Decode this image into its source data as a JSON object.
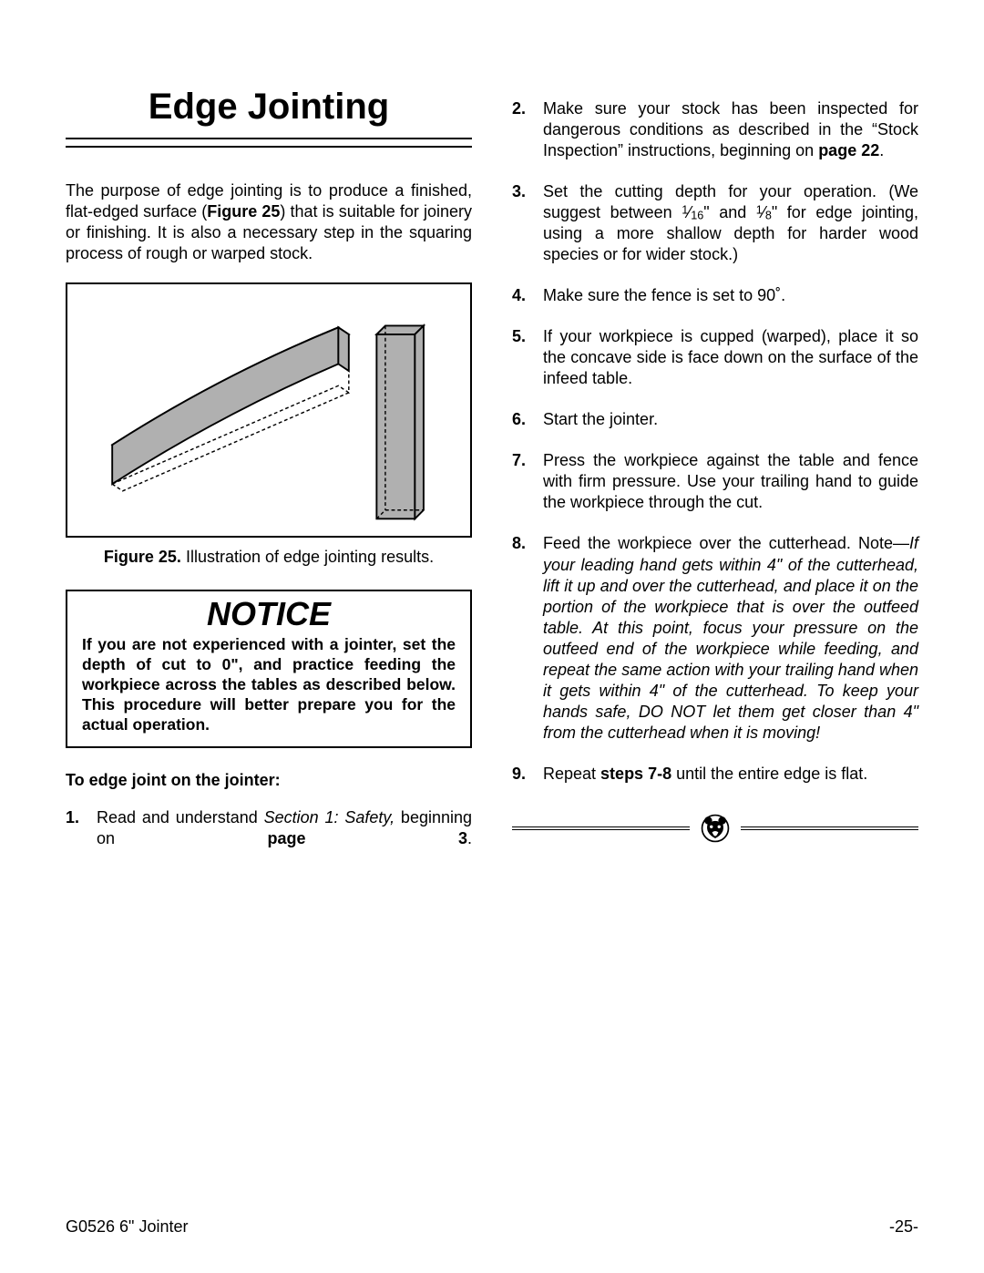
{
  "title": "Edge Jointing",
  "intro_parts": {
    "pre": "The purpose of edge jointing is to produce a finished, flat-edged surface (",
    "ref": "Figure 25",
    "post": ") that is suitable for joinery or finishing. It is also a necessary step in the squaring process of rough or warped stock."
  },
  "figure": {
    "caption_label": "Figure 25.",
    "caption_text": " Illustration of edge jointing results.",
    "colors": {
      "board_fill": "#b0b0b0",
      "stroke": "#000000",
      "background": "#ffffff"
    }
  },
  "notice": {
    "heading": "NOTICE",
    "body": "If you are not experienced with a jointer, set the depth of cut to 0\", and practice feeding the workpiece across the tables as described below. This procedure will better prepare you for the actual operation."
  },
  "lead_in": "To edge joint on the jointer:",
  "steps_left": [
    {
      "num": "1.",
      "parts": [
        {
          "t": "Read and understand "
        },
        {
          "t": "Section 1: Safety,",
          "i": true
        },
        {
          "t": " beginning on "
        },
        {
          "t": "page 3",
          "b": true
        },
        {
          "t": "."
        }
      ],
      "justify_extra": true
    }
  ],
  "steps_right": [
    {
      "num": "2.",
      "parts": [
        {
          "t": "Make sure your stock has been inspected for dangerous conditions as described in the “Stock Inspection” instructions, beginning on "
        },
        {
          "t": "page 22",
          "b": true
        },
        {
          "t": "."
        }
      ]
    },
    {
      "num": "3.",
      "parts": [
        {
          "t": "Set the cutting depth for your operation. (We suggest between "
        },
        {
          "frac": {
            "n": "1",
            "d": "16"
          }
        },
        {
          "t": "\" and "
        },
        {
          "frac": {
            "n": "1",
            "d": "8"
          }
        },
        {
          "t": "\" for edge jointing, using a more shallow depth for harder wood species or for wider stock.)"
        }
      ]
    },
    {
      "num": "4.",
      "parts": [
        {
          "t": "Make sure the fence is set to 90˚."
        }
      ],
      "no_justify": true
    },
    {
      "num": "5.",
      "parts": [
        {
          "t": "If your workpiece is cupped (warped), place it so the concave side is face down on the surface of the infeed table."
        }
      ]
    },
    {
      "num": "6.",
      "parts": [
        {
          "t": "Start the jointer."
        }
      ],
      "no_justify": true
    },
    {
      "num": "7.",
      "parts": [
        {
          "t": "Press the workpiece against the table and fence with firm pressure. Use your trailing hand to guide the workpiece through the cut."
        }
      ]
    },
    {
      "num": "8.",
      "parts": [
        {
          "t": "Feed the workpiece over the cutterhead. Note—"
        },
        {
          "t": "If your leading hand gets within 4\" of the cutterhead, lift it up and over the cutterhead, and place it on the portion of the workpiece that is over the outfeed table. At this point, focus your pressure on the outfeed end of the workpiece while feeding, and repeat the same action with your trailing hand when it gets within 4\" of the cutterhead. To keep your hands safe, DO NOT let them get closer than 4\" from the cutterhead when it is moving!",
          "i": true
        }
      ]
    },
    {
      "num": "9.",
      "parts": [
        {
          "t": "Repeat "
        },
        {
          "t": "steps 7-8",
          "b": true
        },
        {
          "t": " until the entire edge is flat."
        }
      ],
      "no_justify": true
    }
  ],
  "footer": {
    "left": "G0526 6\" Jointer",
    "right": "-25-"
  }
}
